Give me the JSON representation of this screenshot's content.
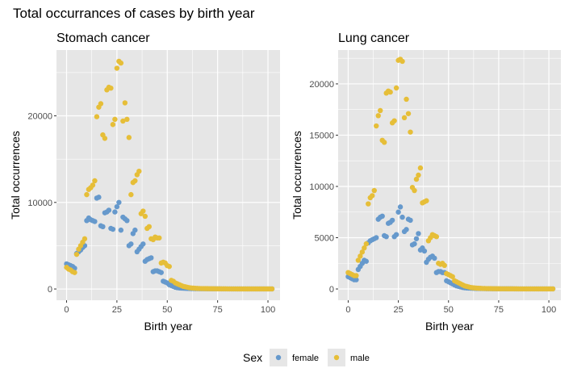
{
  "figure": {
    "title": "Total occurrances of cases by birth year"
  },
  "legend": {
    "title": "Sex",
    "position": "bottom",
    "items": [
      {
        "label": "female",
        "color": "#6699CC"
      },
      {
        "label": "male",
        "color": "#E6BE38"
      }
    ]
  },
  "colors": {
    "panel_background": "#E6E6E6",
    "grid": "#FFFFFF",
    "female": "#6699CC",
    "male": "#E6BE38"
  },
  "chart_data": [
    {
      "type": "scatter",
      "title": "Stomach cancer",
      "xlabel": "Birth year",
      "ylabel": "Total occurrences",
      "xlim": [
        -5,
        106
      ],
      "ylim": [
        -1300,
        27600
      ],
      "x_ticks": [
        0,
        25,
        50,
        75,
        100
      ],
      "y_ticks": [
        0,
        10000,
        20000
      ],
      "grid": true,
      "series": [
        {
          "name": "female",
          "color": "#6699CC",
          "x": [
            0,
            1,
            2,
            3,
            4,
            5,
            6,
            7,
            8,
            9,
            10,
            11,
            12,
            13,
            14,
            15,
            16,
            17,
            18,
            19,
            20,
            21,
            22,
            23,
            24,
            25,
            26,
            27,
            28,
            29,
            30,
            31,
            32,
            33,
            34,
            35,
            36,
            37,
            38,
            39,
            40,
            41,
            42,
            43,
            44,
            45,
            46,
            47,
            48,
            49,
            50,
            51,
            52,
            53,
            54,
            55,
            56,
            57,
            58,
            59,
            60,
            61,
            62,
            63,
            64,
            65,
            66,
            67,
            68,
            69,
            70,
            71,
            72,
            73,
            74,
            75,
            76,
            77,
            78,
            79,
            80,
            81,
            82,
            83,
            84,
            85,
            86,
            87,
            88,
            89,
            90,
            91,
            92,
            93,
            94,
            95,
            96,
            97,
            98,
            99,
            100,
            101,
            102
          ],
          "y": [
            2900,
            2800,
            2700,
            2600,
            2400,
            4100,
            4300,
            4500,
            4800,
            5000,
            7900,
            8200,
            8000,
            7900,
            7800,
            10500,
            10600,
            7300,
            7200,
            8800,
            8900,
            9100,
            7000,
            6900,
            8900,
            9500,
            10000,
            6800,
            8300,
            8100,
            7900,
            5000,
            5200,
            6400,
            6800,
            4300,
            4600,
            4900,
            5200,
            3200,
            3400,
            3500,
            3600,
            2000,
            2100,
            2100,
            2000,
            1900,
            900,
            800,
            700,
            500,
            400,
            300,
            200,
            150,
            120,
            100,
            90,
            80,
            70,
            60,
            50,
            50,
            40,
            40,
            35,
            30,
            30,
            30,
            25,
            25,
            20,
            20,
            20,
            20,
            20,
            15,
            15,
            15,
            15,
            15,
            10,
            10,
            10,
            10,
            10,
            10,
            10,
            10,
            10,
            10,
            10,
            10,
            10,
            10,
            10,
            10,
            10,
            10,
            10,
            10,
            10
          ]
        },
        {
          "name": "male",
          "color": "#E6BE38",
          "x": [
            0,
            1,
            2,
            3,
            4,
            5,
            6,
            7,
            8,
            9,
            10,
            11,
            12,
            13,
            14,
            15,
            16,
            17,
            18,
            19,
            20,
            21,
            22,
            23,
            24,
            25,
            26,
            27,
            28,
            29,
            30,
            31,
            32,
            33,
            34,
            35,
            36,
            37,
            38,
            39,
            40,
            41,
            42,
            43,
            44,
            45,
            46,
            47,
            48,
            49,
            50,
            51,
            52,
            53,
            54,
            55,
            56,
            57,
            58,
            59,
            60,
            61,
            62,
            63,
            64,
            65,
            66,
            67,
            68,
            69,
            70,
            71,
            72,
            73,
            74,
            75,
            76,
            77,
            78,
            79,
            80,
            81,
            82,
            83,
            84,
            85,
            86,
            87,
            88,
            89,
            90,
            91,
            92,
            93,
            94,
            95,
            96,
            97,
            98,
            99,
            100,
            101,
            102
          ],
          "y": [
            2500,
            2300,
            2200,
            2000,
            1900,
            4000,
            4600,
            5000,
            5400,
            5800,
            10900,
            11500,
            11700,
            12000,
            12500,
            19900,
            21000,
            21400,
            17800,
            17400,
            23000,
            23300,
            23200,
            19000,
            19600,
            25500,
            26300,
            26100,
            19400,
            21500,
            19600,
            17500,
            10900,
            12300,
            12500,
            13200,
            13600,
            8700,
            9000,
            8400,
            7000,
            7200,
            5800,
            5700,
            6000,
            5900,
            5900,
            3000,
            3100,
            3000,
            2700,
            2600,
            1000,
            900,
            700,
            600,
            500,
            400,
            300,
            250,
            200,
            150,
            120,
            100,
            80,
            70,
            60,
            50,
            50,
            40,
            40,
            35,
            30,
            30,
            25,
            25,
            20,
            20,
            20,
            20,
            15,
            15,
            15,
            15,
            15,
            10,
            10,
            10,
            10,
            10,
            10,
            10,
            10,
            10,
            10,
            10,
            10,
            10,
            10,
            10,
            10,
            10,
            10
          ]
        }
      ]
    },
    {
      "type": "scatter",
      "title": "Lung cancer",
      "xlabel": "Birth year",
      "ylabel": "Total occurrences",
      "xlim": [
        -5,
        106
      ],
      "ylim": [
        -1100,
        23300
      ],
      "x_ticks": [
        0,
        25,
        50,
        75,
        100
      ],
      "y_ticks": [
        0,
        5000,
        10000,
        15000,
        20000
      ],
      "grid": true,
      "series": [
        {
          "name": "female",
          "color": "#6699CC",
          "x": [
            0,
            1,
            2,
            3,
            4,
            5,
            6,
            7,
            8,
            9,
            10,
            11,
            12,
            13,
            14,
            15,
            16,
            17,
            18,
            19,
            20,
            21,
            22,
            23,
            24,
            25,
            26,
            27,
            28,
            29,
            30,
            31,
            32,
            33,
            34,
            35,
            36,
            37,
            38,
            39,
            40,
            41,
            42,
            43,
            44,
            45,
            46,
            47,
            48,
            49,
            50,
            51,
            52,
            53,
            54,
            55,
            56,
            57,
            58,
            59,
            60,
            61,
            62,
            63,
            64,
            65,
            66,
            67,
            68,
            69,
            70,
            71,
            72,
            73,
            74,
            75,
            76,
            77,
            78,
            79,
            80,
            81,
            82,
            83,
            84,
            85,
            86,
            87,
            88,
            89,
            90,
            91,
            92,
            93,
            94,
            95,
            96,
            97,
            98,
            99,
            100,
            101,
            102
          ],
          "y": [
            1200,
            1100,
            1000,
            900,
            900,
            1900,
            2200,
            2500,
            2800,
            2700,
            4500,
            4700,
            4800,
            4900,
            5000,
            6800,
            7000,
            7100,
            5200,
            5100,
            6400,
            6500,
            6700,
            5100,
            5300,
            7500,
            8000,
            7000,
            5600,
            5800,
            6800,
            6700,
            4300,
            4400,
            4900,
            5400,
            3800,
            4000,
            3700,
            2600,
            2900,
            3100,
            3200,
            3000,
            1600,
            1700,
            1700,
            1600,
            1600,
            800,
            700,
            600,
            500,
            400,
            300,
            250,
            200,
            150,
            120,
            100,
            90,
            80,
            70,
            60,
            50,
            50,
            40,
            40,
            35,
            30,
            30,
            30,
            25,
            25,
            20,
            20,
            20,
            20,
            15,
            15,
            15,
            15,
            15,
            10,
            10,
            10,
            10,
            10,
            10,
            10,
            10,
            10,
            10,
            10,
            10,
            10,
            10,
            10,
            10,
            10,
            10,
            10,
            10
          ]
        },
        {
          "name": "male",
          "color": "#E6BE38",
          "x": [
            0,
            1,
            2,
            3,
            4,
            5,
            6,
            7,
            8,
            9,
            10,
            11,
            12,
            13,
            14,
            15,
            16,
            17,
            18,
            19,
            20,
            21,
            22,
            23,
            24,
            25,
            26,
            27,
            28,
            29,
            30,
            31,
            32,
            33,
            34,
            35,
            36,
            37,
            38,
            39,
            40,
            41,
            42,
            43,
            44,
            45,
            46,
            47,
            48,
            49,
            50,
            51,
            52,
            53,
            54,
            55,
            56,
            57,
            58,
            59,
            60,
            61,
            62,
            63,
            64,
            65,
            66,
            67,
            68,
            69,
            70,
            71,
            72,
            73,
            74,
            75,
            76,
            77,
            78,
            79,
            80,
            81,
            82,
            83,
            84,
            85,
            86,
            87,
            88,
            89,
            90,
            91,
            92,
            93,
            94,
            95,
            96,
            97,
            98,
            99,
            100,
            101,
            102
          ],
          "y": [
            1600,
            1500,
            1400,
            1300,
            1300,
            2800,
            3200,
            3600,
            4000,
            4400,
            8300,
            8900,
            9100,
            9600,
            15900,
            16900,
            17400,
            14500,
            14300,
            19100,
            19300,
            19200,
            16200,
            16400,
            19600,
            22300,
            22400,
            22200,
            16700,
            18500,
            17100,
            15300,
            9900,
            9600,
            10700,
            11100,
            11800,
            8400,
            8500,
            8600,
            4700,
            5000,
            5300,
            5200,
            5100,
            2500,
            2400,
            2500,
            2300,
            1500,
            1400,
            1300,
            1200,
            800,
            700,
            600,
            500,
            400,
            300,
            250,
            200,
            150,
            120,
            100,
            80,
            70,
            60,
            50,
            50,
            40,
            40,
            35,
            30,
            30,
            25,
            25,
            20,
            20,
            20,
            20,
            15,
            15,
            15,
            15,
            15,
            10,
            10,
            10,
            10,
            10,
            10,
            10,
            10,
            10,
            10,
            10,
            10,
            10,
            10,
            10,
            10,
            10,
            10
          ]
        }
      ]
    }
  ]
}
